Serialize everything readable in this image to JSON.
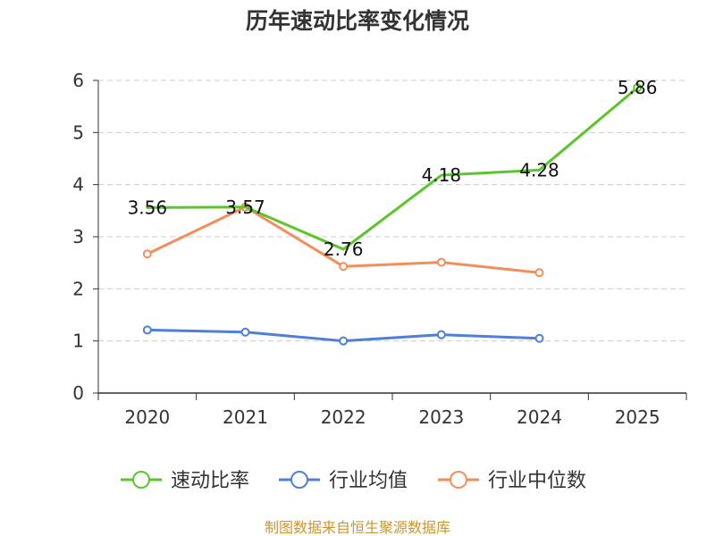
{
  "chart_data": {
    "type": "line",
    "title": "历年速动比率变化情况",
    "categories": [
      "2020",
      "2021",
      "2022",
      "2023",
      "2024",
      "2025"
    ],
    "ylim": [
      0,
      6
    ],
    "yticks": [
      0,
      1,
      2,
      3,
      4,
      5,
      6
    ],
    "grid": true,
    "legend_position": "bottom",
    "series": [
      {
        "name": "速动比率",
        "color": "#5cc52b",
        "values": [
          3.56,
          3.57,
          2.76,
          4.18,
          4.28,
          5.86
        ],
        "labels": [
          "3.56",
          "3.57",
          "2.76",
          "4.18",
          "4.28",
          "5.86"
        ],
        "markers": "last-only"
      },
      {
        "name": "行业均值",
        "color": "#4f7fd9",
        "values": [
          1.21,
          1.17,
          1.0,
          1.12,
          1.05,
          null
        ],
        "markers": "all"
      },
      {
        "name": "行业中位数",
        "color": "#f28e5b",
        "values": [
          2.67,
          3.57,
          2.43,
          2.51,
          2.31,
          null
        ],
        "markers": "all"
      }
    ]
  },
  "source_text": "制图数据来自恒生聚源数据库",
  "source_color": "#c8972f"
}
